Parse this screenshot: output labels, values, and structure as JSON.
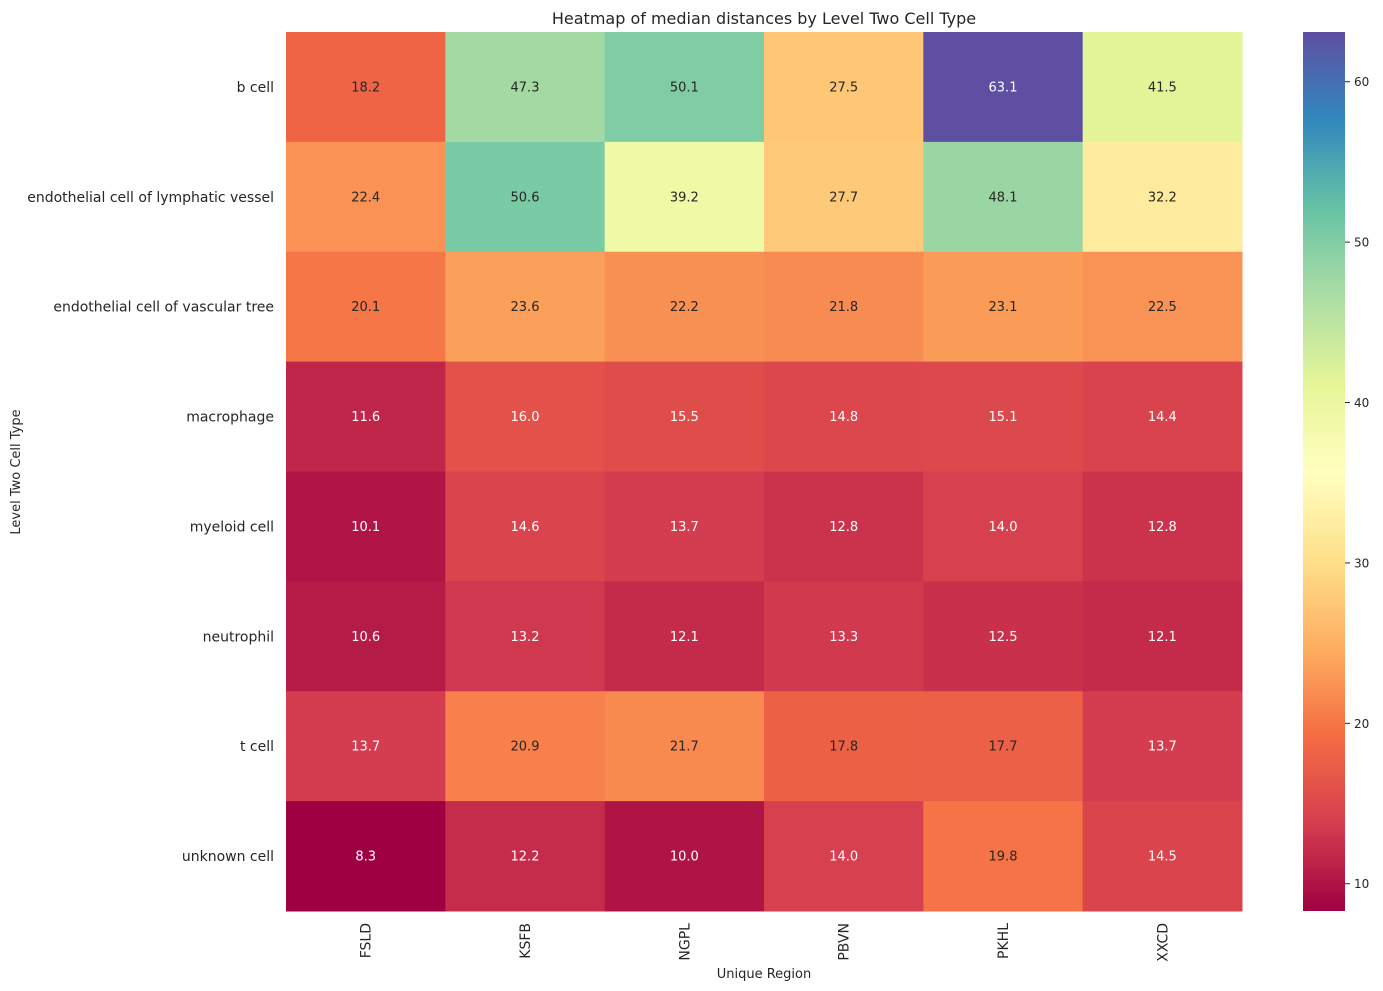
{
  "chart_data": {
    "type": "heatmap",
    "title": "Heatmap of median distances by Level Two Cell Type",
    "xlabel": "Unique Region",
    "ylabel": "Level Two Cell Type",
    "columns": [
      "FSLD",
      "KSFB",
      "NGPL",
      "PBVN",
      "PKHL",
      "XXCD"
    ],
    "rows": [
      "b cell",
      "endothelial cell of lymphatic vessel",
      "endothelial cell of vascular tree",
      "macrophage",
      "myeloid cell",
      "neutrophil",
      "t cell",
      "unknown cell"
    ],
    "values": [
      [
        18.2,
        47.3,
        50.1,
        27.5,
        63.1,
        41.5
      ],
      [
        22.4,
        50.6,
        39.2,
        27.7,
        48.1,
        32.2
      ],
      [
        20.1,
        23.6,
        22.2,
        21.8,
        23.1,
        22.5
      ],
      [
        11.6,
        16.0,
        15.5,
        14.8,
        15.1,
        14.4
      ],
      [
        10.1,
        14.6,
        13.7,
        12.8,
        14.0,
        12.8
      ],
      [
        10.6,
        13.2,
        12.1,
        13.3,
        12.5,
        12.1
      ],
      [
        13.7,
        20.9,
        21.7,
        17.8,
        17.7,
        13.7
      ],
      [
        8.3,
        12.2,
        10.0,
        14.0,
        19.8,
        14.5
      ]
    ],
    "value_range": [
      8.3,
      63.1
    ],
    "colormap": "Spectral",
    "colorbar_ticks": [
      10,
      20,
      30,
      40,
      50,
      60
    ],
    "legend": "colorbar-right",
    "grid": false
  }
}
